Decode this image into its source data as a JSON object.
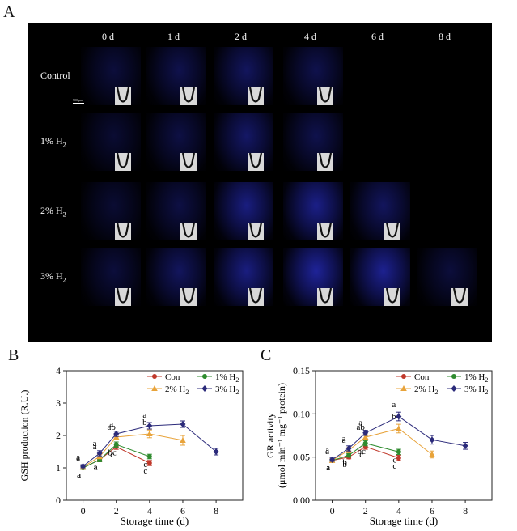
{
  "panels": {
    "a": "A",
    "b": "B",
    "c": "C"
  },
  "micrograph": {
    "columns": [
      "0 d",
      "1 d",
      "2 d",
      "4 d",
      "6 d",
      "8 d"
    ],
    "rows": [
      {
        "label_main": "Control",
        "label_sub": "",
        "present": [
          true,
          true,
          true,
          true,
          false,
          false
        ],
        "intensity": [
          0.35,
          0.45,
          0.55,
          0.45,
          0,
          0
        ]
      },
      {
        "label_main": "1% H",
        "label_sub": "2",
        "present": [
          true,
          true,
          true,
          true,
          false,
          false
        ],
        "intensity": [
          0.3,
          0.4,
          0.6,
          0.45,
          0,
          0
        ]
      },
      {
        "label_main": "2% H",
        "label_sub": "2",
        "present": [
          true,
          true,
          true,
          true,
          true,
          false
        ],
        "intensity": [
          0.3,
          0.4,
          0.75,
          0.8,
          0.55,
          0
        ]
      },
      {
        "label_main": "3% H",
        "label_sub": "2",
        "present": [
          true,
          true,
          true,
          true,
          true,
          true
        ],
        "intensity": [
          0.35,
          0.55,
          0.75,
          0.9,
          0.85,
          0.35
        ]
      }
    ],
    "scale_label": "500 μm",
    "background": "#000000",
    "fluorescence_color": "#1a22b8"
  },
  "chart_data": [
    {
      "type": "line",
      "panel": "B",
      "xlabel": "Storage time (d)",
      "ylabel": "GSH production (R.U.)",
      "xticks": [
        0,
        2,
        4,
        6,
        8
      ],
      "yticks": [
        0,
        1,
        2,
        3,
        4
      ],
      "xlim": [
        -1,
        9.6
      ],
      "ylim": [
        0,
        4
      ],
      "legend_position": "top-right",
      "series": [
        {
          "name": "Con",
          "color": "#c0392b",
          "marker": "circle",
          "x": [
            0,
            1,
            2,
            4
          ],
          "y": [
            1.0,
            1.25,
            1.65,
            1.15
          ],
          "err": [
            0.05,
            0.06,
            0.08,
            0.08
          ],
          "letters": [
            "a",
            "a",
            "c",
            "c"
          ]
        },
        {
          "name": "1% H",
          "sub": "2",
          "color": "#2e8b2e",
          "marker": "circle",
          "x": [
            0,
            1,
            2,
            4
          ],
          "y": [
            1.0,
            1.25,
            1.72,
            1.35
          ],
          "err": [
            0.05,
            0.06,
            0.08,
            0.07
          ],
          "letters": [
            "a",
            "a",
            "bc",
            "c"
          ]
        },
        {
          "name": "2% H",
          "sub": "2",
          "color": "#e8a33a",
          "marker": "triangle",
          "x": [
            0,
            1,
            2,
            4,
            6
          ],
          "y": [
            1.02,
            1.35,
            1.95,
            2.05,
            1.85
          ],
          "err": [
            0.05,
            0.07,
            0.08,
            0.12,
            0.15
          ],
          "letters": [
            "a",
            "a",
            "ab",
            "b",
            ""
          ]
        },
        {
          "name": "3% H",
          "sub": "2",
          "color": "#2b2a7a",
          "marker": "diamond",
          "x": [
            0,
            1,
            2,
            4,
            6,
            8
          ],
          "y": [
            1.05,
            1.45,
            2.05,
            2.3,
            2.35,
            1.5
          ],
          "err": [
            0.05,
            0.08,
            0.08,
            0.1,
            0.1,
            0.1
          ],
          "letters": [
            "a",
            "a",
            "a",
            "a",
            "",
            ""
          ]
        }
      ]
    },
    {
      "type": "line",
      "panel": "C",
      "xlabel": "Storage time (d)",
      "ylabel": "GR activity",
      "ylabel2": "(μmol min⁻¹ mg⁻¹ protein)",
      "xticks": [
        0,
        2,
        4,
        6,
        8
      ],
      "yticks": [
        0.0,
        0.05,
        0.1,
        0.15
      ],
      "yticklabels": [
        "0.00",
        "0.05",
        "0.10",
        "0.15"
      ],
      "xlim": [
        -1,
        9.6
      ],
      "ylim": [
        0,
        0.15
      ],
      "legend_position": "top-right",
      "series": [
        {
          "name": "Con",
          "color": "#c0392b",
          "marker": "circle",
          "x": [
            0,
            1,
            2,
            4
          ],
          "y": [
            0.046,
            0.05,
            0.062,
            0.049
          ],
          "err": [
            0.002,
            0.002,
            0.003,
            0.003
          ],
          "letters": [
            "a",
            "b",
            "c",
            "c"
          ]
        },
        {
          "name": "1% H",
          "sub": "2",
          "color": "#2e8b2e",
          "marker": "circle",
          "x": [
            0,
            1,
            2,
            4
          ],
          "y": [
            0.046,
            0.052,
            0.066,
            0.056
          ],
          "err": [
            0.002,
            0.002,
            0.003,
            0.003
          ],
          "letters": [
            "a",
            "b",
            "bc",
            "c"
          ]
        },
        {
          "name": "2% H",
          "sub": "2",
          "color": "#e8a33a",
          "marker": "triangle",
          "x": [
            0,
            1,
            2,
            4,
            6
          ],
          "y": [
            0.046,
            0.058,
            0.073,
            0.083,
            0.053
          ],
          "err": [
            0.002,
            0.003,
            0.003,
            0.005,
            0.004
          ],
          "letters": [
            "a",
            "a",
            "ab",
            "b",
            ""
          ]
        },
        {
          "name": "3% H",
          "sub": "2",
          "color": "#2b2a7a",
          "marker": "diamond",
          "x": [
            0,
            1,
            2,
            4,
            6,
            8
          ],
          "y": [
            0.047,
            0.06,
            0.078,
            0.097,
            0.07,
            0.063
          ],
          "err": [
            0.002,
            0.003,
            0.003,
            0.005,
            0.005,
            0.004
          ],
          "letters": [
            "a",
            "a",
            "a",
            "a",
            "",
            ""
          ]
        }
      ]
    }
  ]
}
